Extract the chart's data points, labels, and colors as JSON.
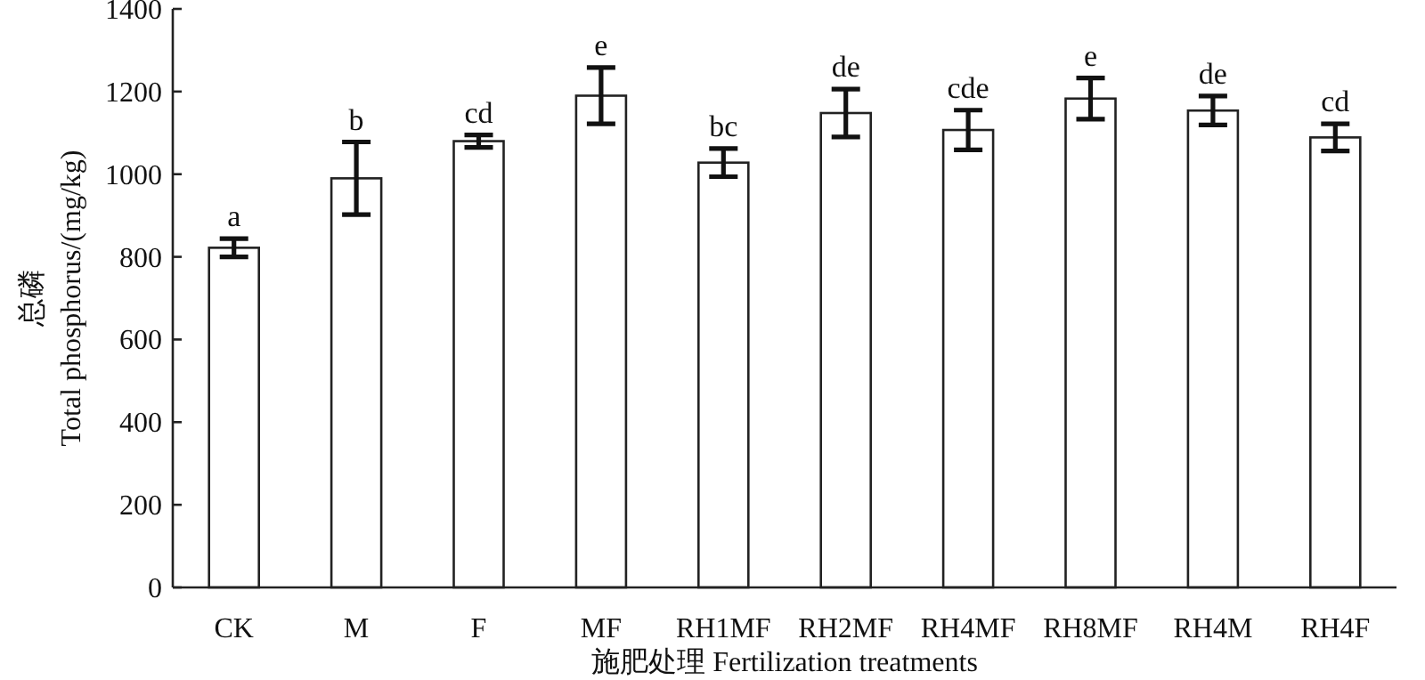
{
  "chart_data": {
    "type": "bar",
    "xlabel": "施肥处理 Fertilization treatments",
    "ylabel": "总磷\nTotal phosphorus/(mg/kg)",
    "categories": [
      "CK",
      "M",
      "F",
      "MF",
      "RH1MF",
      "RH2MF",
      "RH4MF",
      "RH8MF",
      "RH4M",
      "RH4F"
    ],
    "series": [
      {
        "color": "#ffffff",
        "values": [
          822,
          990,
          1080,
          1190,
          1028,
          1148,
          1107,
          1183,
          1154,
          1089
        ],
        "errors": [
          22,
          88,
          15,
          68,
          34,
          58,
          48,
          50,
          35,
          33
        ]
      }
    ],
    "ylim": [
      0,
      1400
    ],
    "yticks": [
      0,
      200,
      400,
      600,
      800,
      1000,
      1200,
      1400
    ],
    "grid": false,
    "annotations": [
      {
        "text": "a",
        "x": "CK",
        "y": 844
      },
      {
        "text": "b",
        "x": "M",
        "y": 1078
      },
      {
        "text": "cd",
        "x": "F",
        "y": 1095
      },
      {
        "text": "e",
        "x": "MF",
        "y": 1258
      },
      {
        "text": "bc",
        "x": "RH1MF",
        "y": 1062
      },
      {
        "text": "de",
        "x": "RH2MF",
        "y": 1206
      },
      {
        "text": "cde",
        "x": "RH4MF",
        "y": 1155
      },
      {
        "text": "e",
        "x": "RH8MF",
        "y": 1233
      },
      {
        "text": "de",
        "x": "RH4M",
        "y": 1189
      },
      {
        "text": "cd",
        "x": "RH4F",
        "y": 1122
      }
    ]
  }
}
